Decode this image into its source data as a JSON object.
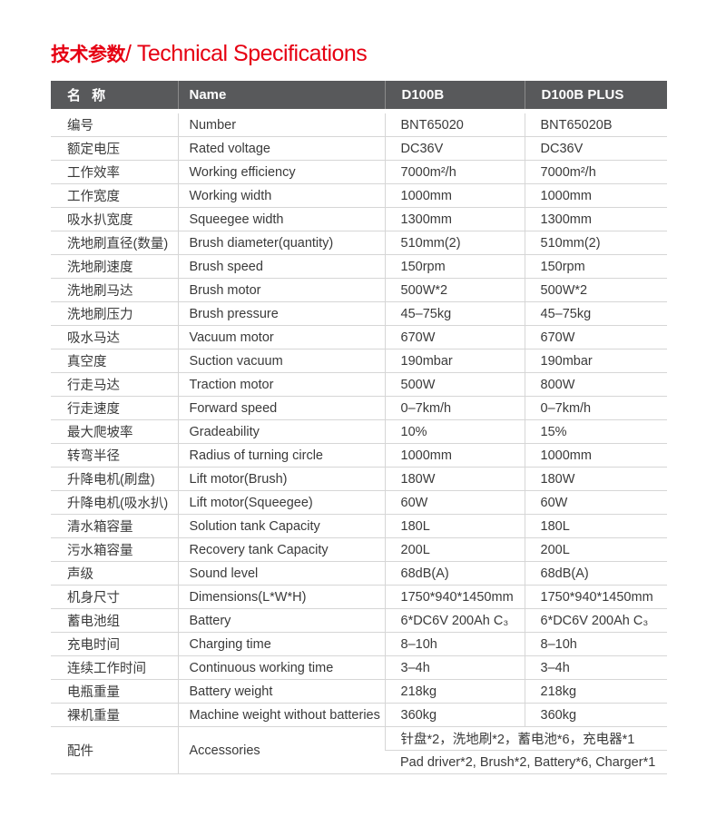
{
  "title": {
    "zh": "技术参数",
    "en": "/ Technical Specifications"
  },
  "colors": {
    "title": "#e60012",
    "header_bg": "#58595b"
  },
  "header": [
    "名 称",
    "Name",
    "D100B",
    "D100B PLUS"
  ],
  "rows": [
    [
      "编号",
      "Number",
      "BNT65020",
      "BNT65020B"
    ],
    [
      "额定电压",
      "Rated voltage",
      "DC36V",
      "DC36V"
    ],
    [
      "工作效率",
      "Working efficiency",
      "7000m²/h",
      "7000m²/h"
    ],
    [
      "工作宽度",
      "Working width",
      "1000mm",
      "1000mm"
    ],
    [
      "吸水扒宽度",
      "Squeegee width",
      "1300mm",
      "1300mm"
    ],
    [
      "洗地刷直径(数量)",
      "Brush diameter(quantity)",
      "510mm(2)",
      "510mm(2)"
    ],
    [
      "洗地刷速度",
      "Brush speed",
      "150rpm",
      "150rpm"
    ],
    [
      "洗地刷马达",
      "Brush motor",
      "500W*2",
      "500W*2"
    ],
    [
      "洗地刷压力",
      "Brush pressure",
      "45–75kg",
      "45–75kg"
    ],
    [
      "吸水马达",
      "Vacuum motor",
      "670W",
      "670W"
    ],
    [
      "真空度",
      "Suction vacuum",
      "190mbar",
      "190mbar"
    ],
    [
      "行走马达",
      "Traction motor",
      "500W",
      "800W"
    ],
    [
      "行走速度",
      "Forward speed",
      "0–7km/h",
      "0–7km/h"
    ],
    [
      "最大爬坡率",
      "Gradeability",
      "10%",
      "15%"
    ],
    [
      "转弯半径",
      "Radius of turning circle",
      "1000mm",
      "1000mm"
    ],
    [
      "升降电机(刷盘)",
      "Lift motor(Brush)",
      "180W",
      "180W"
    ],
    [
      "升降电机(吸水扒)",
      "Lift motor(Squeegee)",
      "60W",
      "60W"
    ],
    [
      "清水箱容量",
      "Solution tank Capacity",
      "180L",
      "180L"
    ],
    [
      "污水箱容量",
      "Recovery tank Capacity",
      "200L",
      "200L"
    ],
    [
      "声级",
      "Sound level",
      "68dB(A)",
      "68dB(A)"
    ],
    [
      "机身尺寸",
      "Dimensions(L*W*H)",
      "1750*940*1450mm",
      "1750*940*1450mm"
    ],
    [
      "蓄电池组",
      "Battery",
      "6*DC6V 200Ah C₃",
      "6*DC6V 200Ah C₃"
    ],
    [
      "充电时间",
      "Charging time",
      "8–10h",
      "8–10h"
    ],
    [
      "连续工作时间",
      "Continuous working time",
      "3–4h",
      "3–4h"
    ],
    [
      "电瓶重量",
      "Battery weight",
      "218kg",
      "218kg"
    ],
    [
      "裸机重量",
      "Machine weight without batteries",
      "360kg",
      "360kg"
    ]
  ],
  "accessories": {
    "zh_label": "配件",
    "en_label": "Accessories",
    "zh_value": "针盘*2，洗地刷*2，蓄电池*6，充电器*1",
    "en_value": "Pad driver*2, Brush*2, Battery*6, Charger*1"
  }
}
